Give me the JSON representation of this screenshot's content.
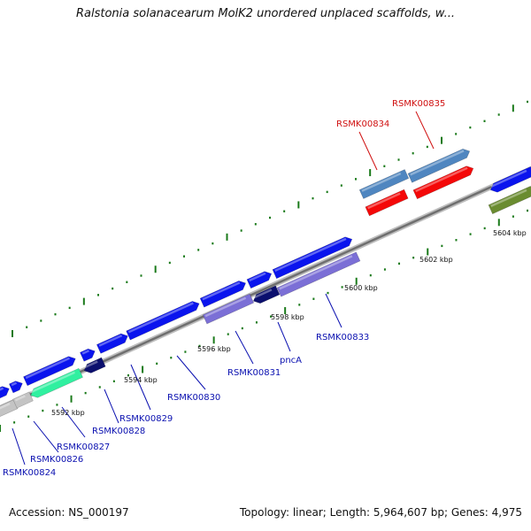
{
  "title": "Ralstonia solanacearum MolK2 unordered unplaced scaffolds, w...",
  "footer": {
    "accession": "Accession: NS_000197",
    "topology": "Topology: linear; Length: 5,964,607 bp; Genes: 4,975"
  },
  "colors": {
    "blue_gene": "#0a14ee",
    "navy_gene": "#0b0f6e",
    "slate_gene": "#4f86c0",
    "red_gene": "#f40808",
    "purple_gene": "#7b6fd6",
    "mint_gene": "#30f0a0",
    "grey_gene": "#c4c4c4",
    "olive_gene": "#6a8c30",
    "label_blue": "#0a10b0",
    "label_red": "#d01010",
    "tick_green": "#1a7a1a",
    "backbone": "#888888"
  },
  "scale_labels": [
    "5592 kbp",
    "5594 kbp",
    "5596 kbp",
    "5598 kbp",
    "5600 kbp",
    "5602 kbp",
    "5604 kbp"
  ],
  "gene_labels": [
    {
      "text": "RSMK00824",
      "color": "blue"
    },
    {
      "text": "RSMK00826",
      "color": "blue"
    },
    {
      "text": "RSMK00827",
      "color": "blue"
    },
    {
      "text": "RSMK00828",
      "color": "blue"
    },
    {
      "text": "RSMK00829",
      "color": "blue"
    },
    {
      "text": "RSMK00830",
      "color": "blue"
    },
    {
      "text": "RSMK00831",
      "color": "blue"
    },
    {
      "text": "pncA",
      "color": "blue"
    },
    {
      "text": "RSMK00833",
      "color": "blue"
    },
    {
      "text": "RSMK00834",
      "color": "red"
    },
    {
      "text": "RSMK00835",
      "color": "red"
    }
  ]
}
